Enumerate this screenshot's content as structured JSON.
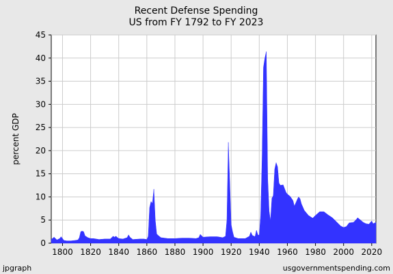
{
  "chart_data": {
    "type": "area",
    "title": "Recent Defense Spending",
    "subtitle": "US from FY 1792 to FY 2023",
    "ylabel": "percent GDP",
    "xlabel": "",
    "xlim": [
      1792,
      2023
    ],
    "ylim": [
      0,
      45
    ],
    "x_ticks": [
      1800,
      1820,
      1840,
      1860,
      1880,
      1900,
      1920,
      1940,
      1960,
      1980,
      2000,
      2020
    ],
    "y_ticks": [
      0,
      5,
      10,
      15,
      20,
      25,
      30,
      35,
      40,
      45
    ],
    "grid": true,
    "fill_color": "#3333ff",
    "series": [
      {
        "x": [
          1792,
          1794,
          1796,
          1798,
          1799,
          1801,
          1803,
          1806,
          1809,
          1811,
          1812,
          1813,
          1814,
          1815,
          1816,
          1817,
          1818,
          1820,
          1822,
          1826,
          1830,
          1834,
          1836,
          1837,
          1838,
          1840,
          1843,
          1846,
          1847,
          1848,
          1850,
          1855,
          1858,
          1860,
          1861,
          1862,
          1863,
          1864,
          1865,
          1866,
          1867,
          1868,
          1870,
          1875,
          1880,
          1885,
          1890,
          1895,
          1897,
          1898,
          1899,
          1900,
          1905,
          1910,
          1914,
          1916,
          1917,
          1918,
          1919,
          1920,
          1921,
          1922,
          1925,
          1930,
          1933,
          1934,
          1935,
          1937,
          1938,
          1939,
          1940,
          1941,
          1942,
          1943,
          1944,
          1945,
          1946,
          1947,
          1948,
          1949,
          1950,
          1951,
          1952,
          1953,
          1954,
          1955,
          1957,
          1959,
          1960,
          1962,
          1964,
          1965,
          1967,
          1968,
          1969,
          1970,
          1972,
          1975,
          1978,
          1980,
          1983,
          1986,
          1989,
          1992,
          1995,
          1998,
          2000,
          2002,
          2004,
          2007,
          2009,
          2010,
          2012,
          2014,
          2016,
          2018,
          2020,
          2021,
          2023
        ],
        "values": [
          0.8,
          1.3,
          0.7,
          1.0,
          1.4,
          0.6,
          0.5,
          0.5,
          0.6,
          0.7,
          1.2,
          2.5,
          2.6,
          2.5,
          1.6,
          1.4,
          1.2,
          1.0,
          1.0,
          0.8,
          0.9,
          0.9,
          1.5,
          1.3,
          1.5,
          1.0,
          0.9,
          1.2,
          1.8,
          1.3,
          0.8,
          0.9,
          0.9,
          0.8,
          1.5,
          7.7,
          9.0,
          8.6,
          11.7,
          5.0,
          2.0,
          1.7,
          1.2,
          1.0,
          1.0,
          1.1,
          1.1,
          1.0,
          1.2,
          1.9,
          1.6,
          1.3,
          1.4,
          1.4,
          1.2,
          1.5,
          5.0,
          21.8,
          13.0,
          4.0,
          2.5,
          1.3,
          1.0,
          1.0,
          1.5,
          2.4,
          1.7,
          1.4,
          2.8,
          1.8,
          1.7,
          6.0,
          18.0,
          38.0,
          40.0,
          41.4,
          14.0,
          7.0,
          4.8,
          9.7,
          10.3,
          16.0,
          17.4,
          16.5,
          13.0,
          12.5,
          12.6,
          11.0,
          10.6,
          10.1,
          9.2,
          8.0,
          9.4,
          10.0,
          9.6,
          8.5,
          7.1,
          6.0,
          5.4,
          6.0,
          6.8,
          6.8,
          6.1,
          5.5,
          4.6,
          3.7,
          3.4,
          3.6,
          4.4,
          4.5,
          5.1,
          5.5,
          5.0,
          4.5,
          4.2,
          4.1,
          4.8,
          4.2,
          4.5
        ]
      }
    ]
  },
  "footer": {
    "left": "jpgraph",
    "right": "usgovernmentspending.com"
  }
}
